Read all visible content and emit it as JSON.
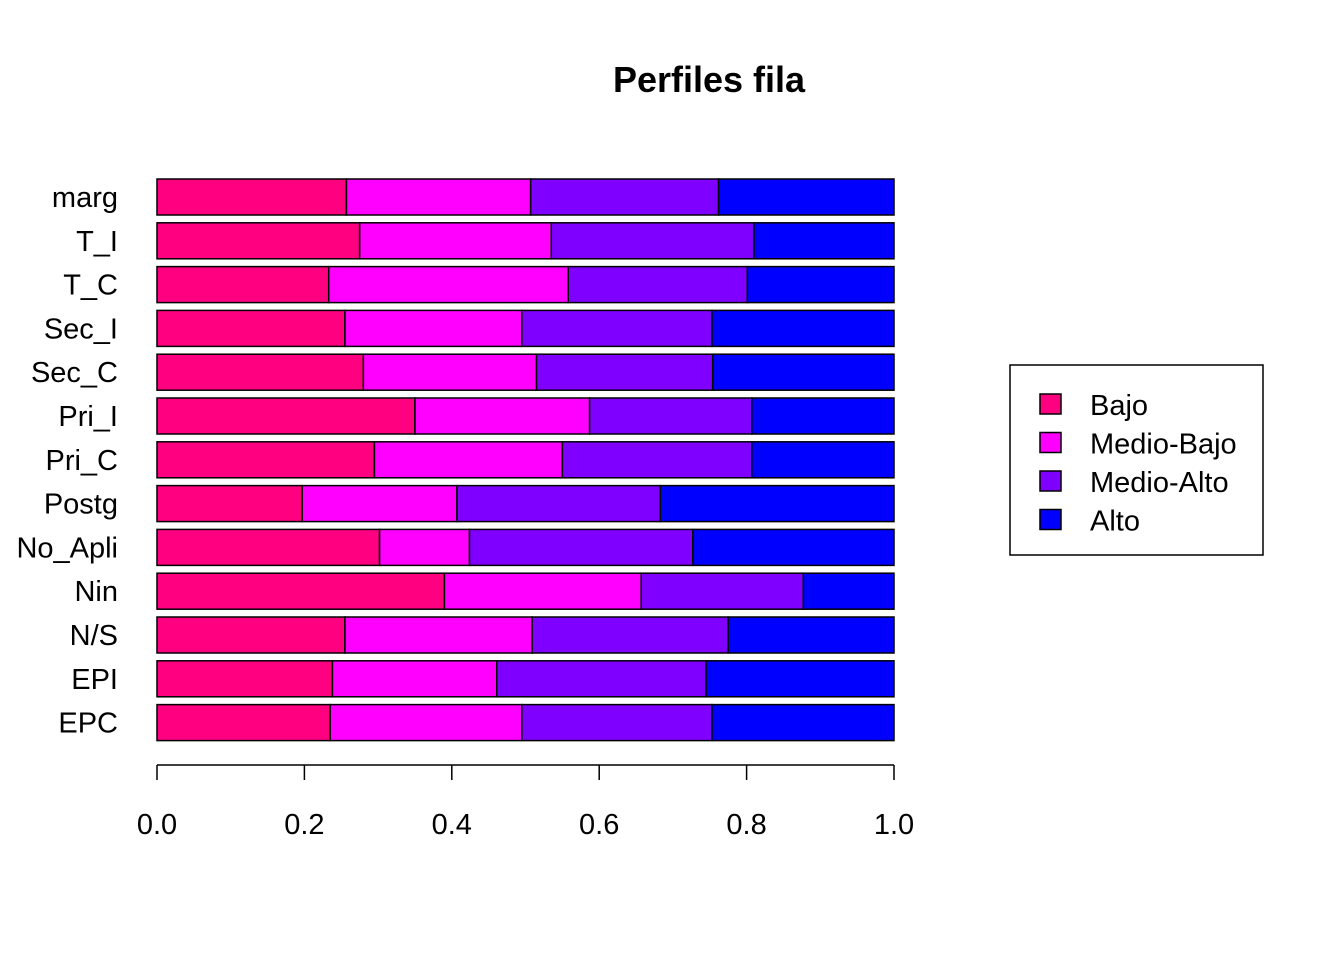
{
  "chart_data": {
    "type": "bar",
    "orientation": "horizontal",
    "stacked": true,
    "title": "Perfiles fila",
    "xlabel": "",
    "ylabel": "",
    "xlim": [
      0,
      1
    ],
    "x_ticks": [
      "0.0",
      "0.2",
      "0.4",
      "0.6",
      "0.8",
      "1.0"
    ],
    "categories": [
      "marg",
      "T_I",
      "T_C",
      "Sec_I",
      "Sec_C",
      "Pri_I",
      "Pri_C",
      "Postg",
      "No_Apli",
      "Nin",
      "N/S",
      "EPI",
      "EPC"
    ],
    "series": [
      {
        "name": "Bajo",
        "color": "#FF0080",
        "values": [
          0.257,
          0.275,
          0.233,
          0.255,
          0.28,
          0.35,
          0.295,
          0.197,
          0.302,
          0.39,
          0.255,
          0.238,
          0.235
        ]
      },
      {
        "name": "Medio-Bajo",
        "color": "#FF00FF",
        "values": [
          0.25,
          0.26,
          0.325,
          0.24,
          0.235,
          0.237,
          0.255,
          0.21,
          0.122,
          0.267,
          0.254,
          0.223,
          0.26
        ]
      },
      {
        "name": "Medio-Alto",
        "color": "#8000FF",
        "values": [
          0.255,
          0.275,
          0.243,
          0.258,
          0.239,
          0.22,
          0.257,
          0.276,
          0.303,
          0.22,
          0.266,
          0.284,
          0.258
        ]
      },
      {
        "name": "Alto",
        "color": "#0000FF",
        "values": [
          0.238,
          0.19,
          0.199,
          0.247,
          0.246,
          0.193,
          0.193,
          0.317,
          0.273,
          0.123,
          0.225,
          0.255,
          0.247
        ]
      }
    ],
    "legend": {
      "placement": "right",
      "entries": [
        "Bajo",
        "Medio-Bajo",
        "Medio-Alto",
        "Alto"
      ]
    },
    "grid": false
  }
}
